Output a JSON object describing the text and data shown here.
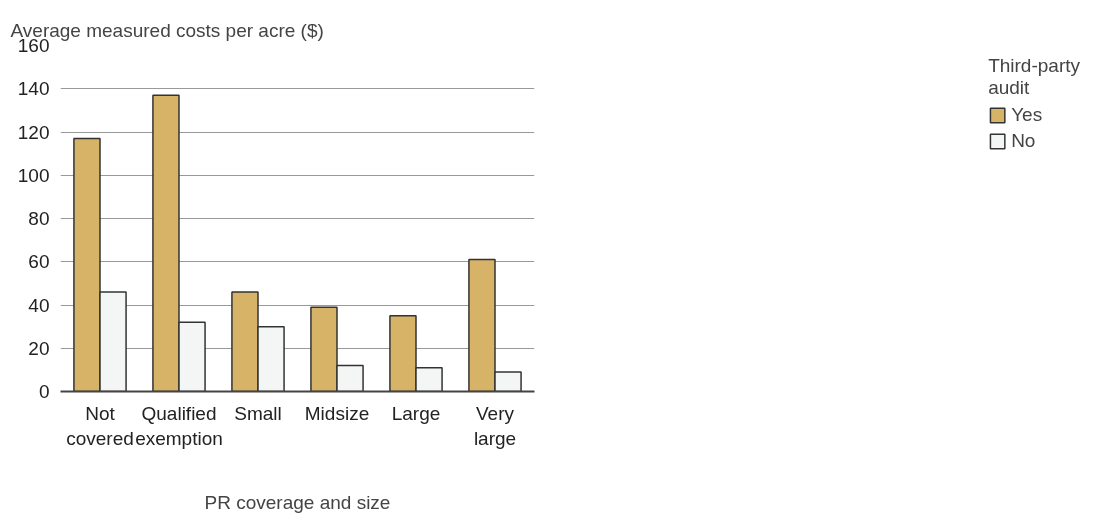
{
  "chart_data": {
    "type": "bar",
    "ylabel": "Average measured costs per acre ($)",
    "xlabel": "PR coverage and size",
    "legend_title": "Third-party audit",
    "categories": [
      "Not covered",
      "Qualified exemption",
      "Small",
      "Midsize",
      "Large",
      "Very large"
    ],
    "series": [
      {
        "name": "Yes",
        "color": "#d6b366",
        "values": [
          117,
          137,
          46,
          39,
          35,
          61
        ]
      },
      {
        "name": "No",
        "color": "#f4f6f5",
        "values": [
          46,
          32,
          30,
          12,
          11,
          9
        ]
      }
    ],
    "ylim": [
      0,
      160
    ],
    "yticks": [
      0,
      20,
      40,
      60,
      80,
      100,
      120,
      140,
      160
    ],
    "grid": "y",
    "legend": "right"
  }
}
